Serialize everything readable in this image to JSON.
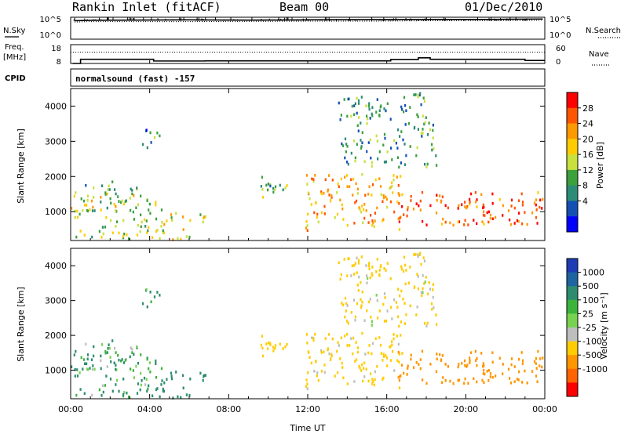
{
  "header": {
    "station": "Rankin Inlet (fitACF)",
    "beam": "Beam 00",
    "date": "01/Dec/2010"
  },
  "panel_labels": {
    "nsky": "N.Sky",
    "nsearch": "N.Search",
    "freq": "Freq.",
    "freq_unit": "[MHz]",
    "nave": "Nave",
    "cpid": "CPID",
    "cpid_value": "normalsound (fast) -157"
  },
  "axes": {
    "xlabel": "Time UT",
    "ylabel": "Slant Range [km]",
    "x_ticks": [
      "00:00",
      "04:00",
      "08:00",
      "12:00",
      "16:00",
      "20:00",
      "00:00"
    ],
    "y_ticks": [
      "1000",
      "2000",
      "3000",
      "4000"
    ],
    "nsky_ticks": [
      "10^5",
      "10^0"
    ],
    "nsearch_ticks": [
      "10^5",
      "10^0"
    ],
    "freq_ticks": [
      "18",
      "8"
    ],
    "nave_ticks": [
      "60",
      "0"
    ]
  },
  "power_colorbar": {
    "label": "Power [dB]",
    "ticks": [
      "28",
      "24",
      "20",
      "16",
      "12",
      "8",
      "4"
    ],
    "colors": [
      "#ff0000",
      "#ff5500",
      "#ff9900",
      "#ffcc00",
      "#c8e13c",
      "#3ca03c",
      "#2d8c78",
      "#1450b4",
      "#0000ff"
    ]
  },
  "velocity_colorbar": {
    "label": "Velocity [m s⁻¹]",
    "ticks": [
      "1000",
      "500",
      "100",
      "25",
      "-25",
      "-100",
      "-500",
      "-1000"
    ],
    "colors": [
      "#1e3cb4",
      "#1e64a0",
      "#2d8c6e",
      "#3cb43c",
      "#78d250",
      "#bebebe",
      "#ffcc00",
      "#ff9600",
      "#ff6400",
      "#ff0000"
    ]
  },
  "chart_data": [
    {
      "type": "line",
      "title": "N.Sky / N.Search",
      "xlim": [
        0,
        24
      ],
      "ylim_log10": [
        0,
        5
      ],
      "series": [
        {
          "name": "N.Sky",
          "x": [
            0.2,
            1,
            3,
            6,
            9,
            12,
            15,
            18,
            21,
            23.9
          ],
          "y_log10": [
            4.2,
            4.3,
            4.35,
            4.4,
            4.35,
            4.4,
            4.45,
            4.5,
            4.5,
            4.6
          ]
        },
        {
          "name": "N.Search",
          "x": [
            0.2,
            1,
            3,
            6,
            9,
            12,
            15,
            18,
            21,
            23.9
          ],
          "y_log10": [
            3.9,
            4.0,
            4.0,
            4.0,
            4.05,
            4.1,
            4.1,
            4.2,
            4.25,
            4.3
          ]
        }
      ]
    },
    {
      "type": "line",
      "title": "Freq. [MHz] / Nave",
      "xlim": [
        0,
        24
      ],
      "ylim": [
        8,
        18
      ],
      "series": [
        {
          "name": "Freq.",
          "x": [
            0.1,
            0.5,
            0.5,
            4.2,
            4.2,
            6.8,
            6.8,
            16.2,
            16.2,
            17.6,
            17.6,
            18.2,
            18.2,
            23.0,
            23.0,
            24
          ],
          "y": [
            8,
            8,
            10.2,
            10.2,
            9.3,
            9.3,
            9.4,
            9.4,
            10.1,
            10.1,
            11.0,
            11.0,
            10.2,
            10.2,
            9.6,
            9.6
          ]
        },
        {
          "name": "Nave",
          "x": [
            0,
            24
          ],
          "y": [
            14,
            14
          ]
        }
      ]
    },
    {
      "type": "heatmap",
      "title": "Power [dB]",
      "xlabel": "Time UT",
      "ylabel": "Slant Range [km]",
      "xlim": [
        0,
        24
      ],
      "ylim": [
        180,
        4500
      ],
      "patches": [
        {
          "t": [
            0,
            4.6
          ],
          "r": [
            250,
            1500
          ],
          "value": 16
        },
        {
          "t": [
            0.2,
            3.5
          ],
          "r": [
            1000,
            1900
          ],
          "value": 12
        },
        {
          "t": [
            3.5,
            4.7
          ],
          "r": [
            2850,
            3400
          ],
          "value": 8
        },
        {
          "t": [
            4.5,
            6.8
          ],
          "r": [
            200,
            1000
          ],
          "value": 18
        },
        {
          "t": [
            9.5,
            11.3
          ],
          "r": [
            1400,
            2050
          ],
          "value": 12
        },
        {
          "t": [
            11.8,
            16.8
          ],
          "r": [
            500,
            2100
          ],
          "value": 22
        },
        {
          "t": [
            13.5,
            18.5
          ],
          "r": [
            2300,
            4400
          ],
          "value": 10
        },
        {
          "t": [
            16.5,
            24
          ],
          "r": [
            600,
            1600
          ],
          "value": 28
        }
      ]
    },
    {
      "type": "heatmap",
      "title": "Velocity [m s-1]",
      "xlabel": "Time UT",
      "ylabel": "Slant Range [km]",
      "xlim": [
        0,
        24
      ],
      "ylim": [
        180,
        4500
      ],
      "patches": [
        {
          "t": [
            0,
            4.6
          ],
          "r": [
            250,
            1500
          ],
          "value": 150
        },
        {
          "t": [
            0.2,
            3.5
          ],
          "r": [
            1000,
            1900
          ],
          "value": 100
        },
        {
          "t": [
            3.5,
            4.7
          ],
          "r": [
            2850,
            3400
          ],
          "value": 200
        },
        {
          "t": [
            4.5,
            6.8
          ],
          "r": [
            200,
            1000
          ],
          "value": 300
        },
        {
          "t": [
            9.5,
            11.3
          ],
          "r": [
            1400,
            2050
          ],
          "value": -300
        },
        {
          "t": [
            11.8,
            16.8
          ],
          "r": [
            500,
            2100
          ],
          "value": -250
        },
        {
          "t": [
            13.5,
            18.5
          ],
          "r": [
            2300,
            4400
          ],
          "value": -200
        },
        {
          "t": [
            16.5,
            24
          ],
          "r": [
            600,
            1600
          ],
          "value": -700
        }
      ]
    }
  ]
}
